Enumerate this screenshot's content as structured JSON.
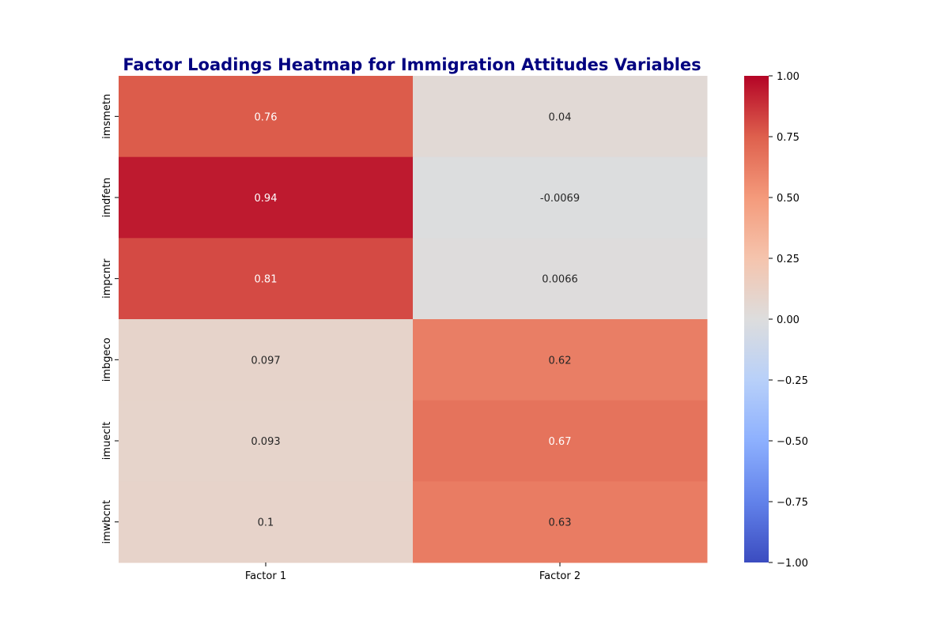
{
  "chart_data": {
    "type": "heatmap",
    "title": "Factor Loadings Heatmap for Immigration Attitudes Variables",
    "title_color": "#000080",
    "columns": [
      "Factor 1",
      "Factor 2"
    ],
    "rows": [
      "imsmetn",
      "imdfetn",
      "impcntr",
      "imbgeco",
      "imueclt",
      "imwbcnt"
    ],
    "values": [
      [
        0.76,
        0.04
      ],
      [
        0.94,
        -0.0069
      ],
      [
        0.81,
        0.0066
      ],
      [
        0.097,
        0.62
      ],
      [
        0.093,
        0.67
      ],
      [
        0.1,
        0.63
      ]
    ],
    "annotations": [
      [
        "0.76",
        "0.04"
      ],
      [
        "0.94",
        "-0.0069"
      ],
      [
        "0.81",
        "0.0066"
      ],
      [
        "0.097",
        "0.62"
      ],
      [
        "0.093",
        "0.67"
      ],
      [
        "0.1",
        "0.63"
      ]
    ],
    "colormap": "coolwarm",
    "vmin": -1,
    "vmax": 1,
    "colorbar_ticks": [
      1,
      0.75,
      0.5,
      0.25,
      0,
      -0.25,
      -0.5,
      -0.75,
      -1
    ],
    "colorbar_tick_labels": [
      "1.00",
      "0.75",
      "0.50",
      "0.25",
      "0.00",
      "−0.25",
      "−0.50",
      "−0.75",
      "−1.00"
    ],
    "xlabel": "",
    "ylabel": ""
  }
}
